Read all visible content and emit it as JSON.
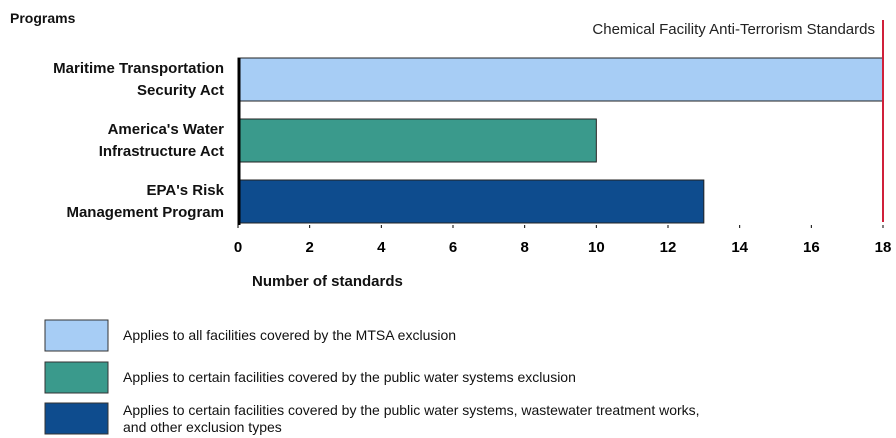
{
  "chart_data": {
    "type": "bar",
    "orientation": "horizontal",
    "y_axis_title": "Programs",
    "x_axis_title": "Number of standards",
    "categories": [
      "Maritime Transportation\nSecurity Act",
      "America's Water\nInfrastructure Act",
      "EPA's Risk\nManagement Program"
    ],
    "values": [
      18,
      10,
      13
    ],
    "colors": [
      "#a7cdf5",
      "#3a9a8c",
      "#0e4c8e"
    ],
    "xlim": [
      0,
      18
    ],
    "xticks": [
      0,
      2,
      4,
      6,
      8,
      10,
      12,
      14,
      16,
      18
    ],
    "reference_line": {
      "value": 18,
      "label": "Chemical Facility Anti-Terrorism Standards",
      "color": "#d0203a"
    },
    "legend": [
      {
        "label": "Applies to all facilities covered by the MTSA exclusion",
        "color": "#a7cdf5"
      },
      {
        "label": "Applies to certain facilities covered by the public water systems exclusion",
        "color": "#3a9a8c"
      },
      {
        "label": "Applies to certain facilities covered by the public water systems, wastewater treatment works,\nand other exclusion types",
        "color": "#0e4c8e"
      }
    ]
  }
}
